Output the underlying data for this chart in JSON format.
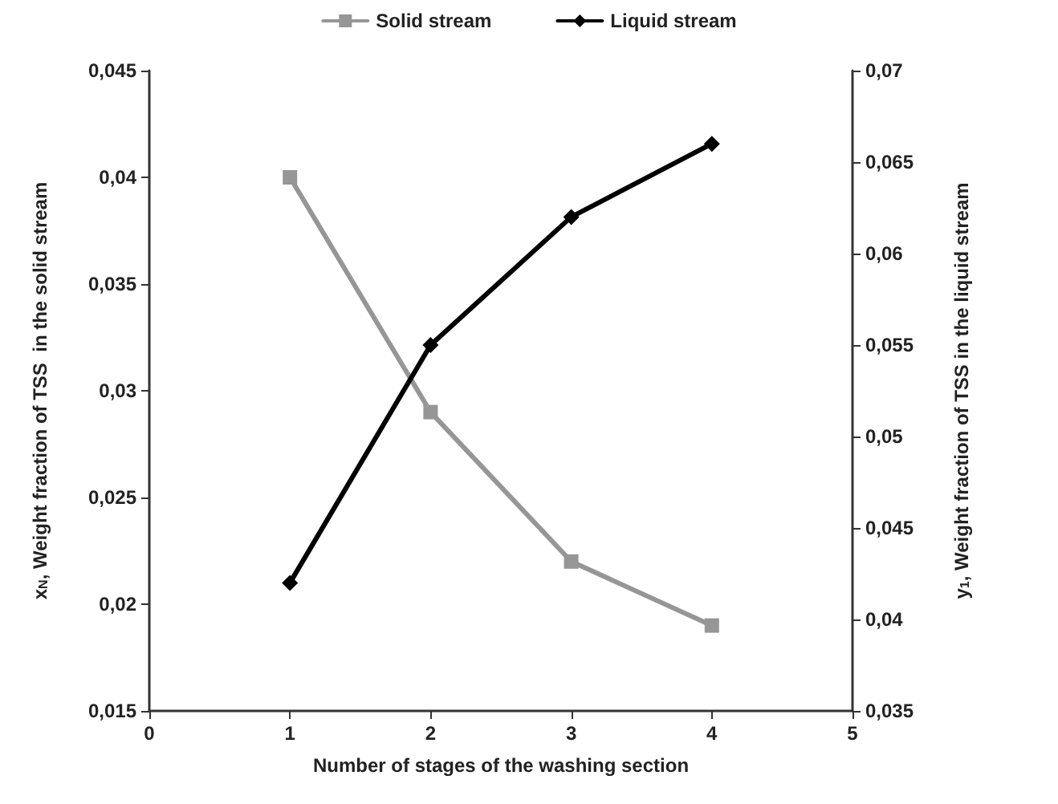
{
  "chart_data": {
    "type": "line",
    "xlabel": "Number of stages of the washing section",
    "ylabel": "x$_{N}$, Weight fraction of TSS  in the solid stream",
    "y2label": "y$_{1}$, Weight fraction of TSS in the liquid stream",
    "x": [
      1,
      2,
      3,
      4
    ],
    "series": [
      {
        "name": "Solid stream",
        "color": "#969696",
        "values": [
          0.04,
          0.029,
          0.022,
          0.019
        ],
        "marker": "square"
      },
      {
        "name": "Liquid stream",
        "color": "#000000",
        "values": [
          0.042,
          0.055,
          0.062,
          0.066
        ],
        "marker": "diamond",
        "axis": "y2"
      }
    ],
    "xlim": [
      0,
      5
    ],
    "xticks": [
      0,
      1,
      2,
      3,
      4,
      5
    ],
    "ylim": [
      0.015,
      0.045
    ],
    "yticks": [
      {
        "value": 0.015,
        "label": "0,015"
      },
      {
        "value": 0.02,
        "label": "0,02"
      },
      {
        "value": 0.025,
        "label": "0,025"
      },
      {
        "value": 0.03,
        "label": "0,03"
      },
      {
        "value": 0.035,
        "label": "0,035"
      },
      {
        "value": 0.04,
        "label": "0,04"
      },
      {
        "value": 0.045,
        "label": "0,045"
      }
    ],
    "y2lim": [
      0.035,
      0.07
    ],
    "y2ticks": [
      {
        "value": 0.035,
        "label": "0,035"
      },
      {
        "value": 0.04,
        "label": "0,04"
      },
      {
        "value": 0.045,
        "label": "0,045"
      },
      {
        "value": 0.05,
        "label": "0,05"
      },
      {
        "value": 0.055,
        "label": "0,055"
      },
      {
        "value": 0.06,
        "label": "0,06"
      },
      {
        "value": 0.065,
        "label": "0,065"
      },
      {
        "value": 0.07,
        "label": "0,07"
      }
    ],
    "grid": false,
    "legend": "top",
    "line_style": "solid"
  }
}
